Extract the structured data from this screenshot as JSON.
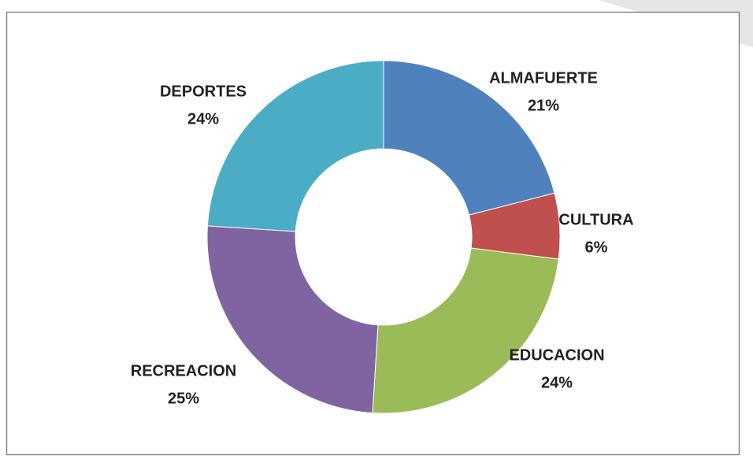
{
  "chart_data": {
    "type": "donut",
    "categories": [
      "ALMAFUERTE",
      "CULTURA",
      "EDUCACION",
      "RECREACION",
      "DEPORTES"
    ],
    "values": [
      21,
      6,
      24,
      25,
      24
    ],
    "value_labels": [
      "21%",
      "6%",
      "24%",
      "25%",
      "24%"
    ],
    "colors": [
      "#4f81bd",
      "#c0504d",
      "#9bbb59",
      "#8064a2",
      "#4bacc6"
    ]
  }
}
